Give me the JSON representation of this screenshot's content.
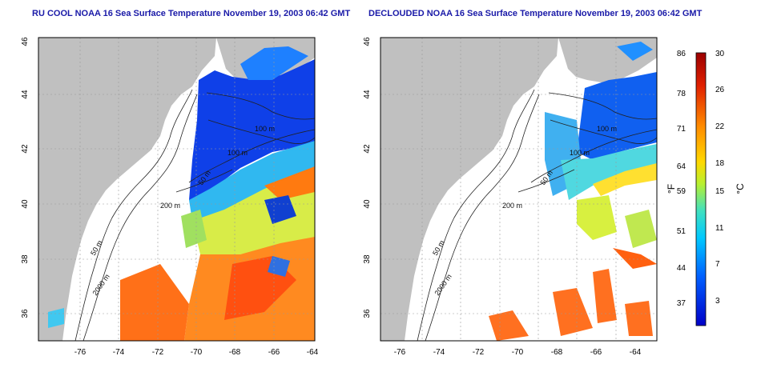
{
  "left_panel": {
    "title": "RU COOL NOAA 16 Sea Surface Temperature November 19, 2003 06:42 GMT",
    "xticks": [
      "-76",
      "-74",
      "-72",
      "-70",
      "-68",
      "-66",
      "-64"
    ],
    "yticks": [
      "36",
      "38",
      "40",
      "42",
      "44",
      "46"
    ],
    "contour_labels": [
      "100 m",
      "100 m",
      "50 m",
      "200 m",
      "50 m",
      "2000 m"
    ]
  },
  "right_panel": {
    "title": "DECLOUDED NOAA 16 Sea Surface Temperature November 19, 2003 06:42 GMT",
    "xticks": [
      "-76",
      "-74",
      "-72",
      "-70",
      "-68",
      "-66",
      "-64"
    ],
    "yticks": [
      "36",
      "38",
      "40",
      "42",
      "44",
      "46"
    ],
    "contour_labels": [
      "100 m",
      "100 m",
      "50 m",
      "200 m",
      "50 m",
      "2000 m"
    ]
  },
  "colorbar": {
    "fahrenheit_ticks": [
      "86",
      "78",
      "71",
      "64",
      "59",
      "51",
      "44",
      "37"
    ],
    "celsius_ticks": [
      "30",
      "26",
      "22",
      "18",
      "15",
      "11",
      "7",
      "3"
    ],
    "fahrenheit_label": "°F",
    "celsius_label": "°C",
    "colors": [
      "#9b0000",
      "#e02000",
      "#ff8c00",
      "#ffd800",
      "#b8f030",
      "#40e0c0",
      "#00c8ff",
      "#0060ff",
      "#0000c8"
    ]
  }
}
